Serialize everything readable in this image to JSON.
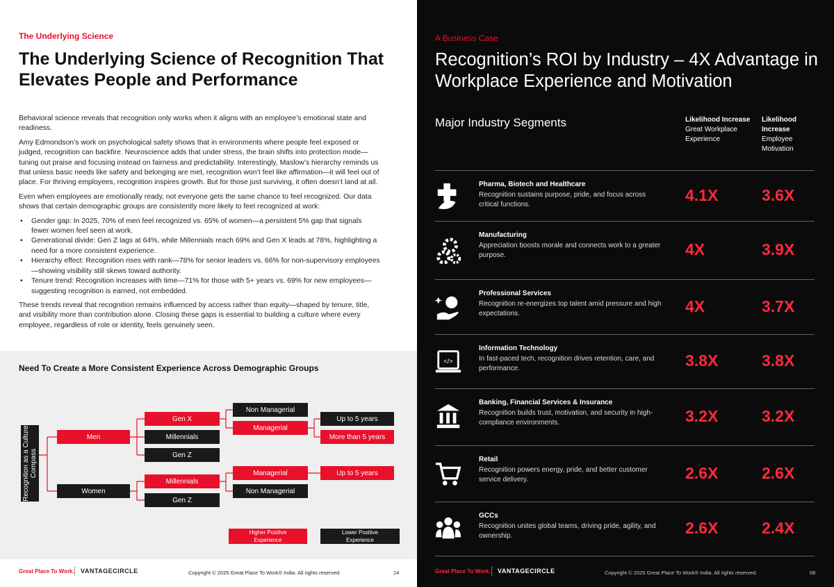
{
  "left": {
    "eyebrow": "The Underlying Science",
    "title": "The Underlying Science of Recognition That Elevates People and Performance",
    "paragraphs": [
      "Behavioral science reveals that recognition only works when it aligns with an employee’s emotional state and readiness.",
      "Amy Edmondson’s work on psychological safety shows that in environments where people feel exposed or judged, recognition can backfire. Neuroscience adds that under stress, the brain shifts into protection mode—tuning out praise and focusing instead on fairness and predictability. Interestingly, Maslow’s hierarchy reminds us that unless basic needs like safety and belonging are met, recognition won’t feel like affirmation—it will feel out of place. For thriving employees, recognition inspires growth. But for those just surviving, it often doesn’t land at all.",
      "Even when employees are emotionally ready, not everyone gets the same chance to feel recognized. Our data shows that certain demographic groups are consistently more likely to feel recognized at work:"
    ],
    "bullets": [
      "Gender gap: In 2025, 70% of men feel recognized vs. 65% of women—a persistent 5% gap that signals fewer women  feel seen at work.",
      "Generational divide: Gen Z lags at 64%, while Millennials reach 69% and Gen X leads at 78%, highlighting a need for a more consistent experience.",
      "Hierarchy effect: Recognition rises with rank—78% for senior leaders vs. 66% for non-supervisory employees—showing visibility still skews toward authority.",
      "Tenure trend: Recognition increases with time—71% for those with 5+ years vs. 69% for new employees—suggesting recognition is earned, not embedded."
    ],
    "closing": "These trends reveal that recognition remains influenced by access rather than equity—shaped by tenure, title, and visibility more than contribution alone. Closing these gaps is essential to building a culture where every employee, regardless of role or identity, feels genuinely seen.",
    "diagram": {
      "title": "Need To Create a More Consistent Experience Across Demographic Groups",
      "root": "Recognition as a Culture Compass",
      "nodes": [
        "Men",
        "Women",
        "Gen X",
        "Millennials",
        "Gen Z",
        "Millennials",
        "Gen Z",
        "Non Managerial",
        "Managerial",
        "Managerial",
        "Non Managerial",
        "Up to 5 years",
        "More than 5 years",
        "Up to 5 years"
      ],
      "legend": [
        "Higher Positive Experience",
        "Lower Positive Experience"
      ]
    },
    "footer": {
      "brand": "Great Place To Work.",
      "partner": "VANTAGECIRCLE",
      "copyright": "Copyright © 2025 Great Place To Work® India. All rights reserved.",
      "page": "14"
    }
  },
  "right": {
    "eyebrow": "A Business Case",
    "title": "Recognition’s ROI by Industry – 4X Advantage in Workplace Experience and Motivation",
    "table": {
      "heading": "Major Industry Segments",
      "columns": [
        {
          "head": "Likelihood Increase",
          "sub": "Great Workplace Experience"
        },
        {
          "head": "Likelihood Increase",
          "sub": "Employee Motivation"
        }
      ],
      "rows": [
        {
          "name": "Pharma, Biotech and Healthcare",
          "desc": "Recognition sustains purpose, pride, and focus across critical functions.",
          "values": [
            "4.1X",
            "3.6X"
          ]
        },
        {
          "name": "Manufacturing",
          "desc": "Appreciation boosts morale and connects work to a greater purpose.",
          "values": [
            "4X",
            "3.9X"
          ]
        },
        {
          "name": "Professional Services",
          "desc": "Recognition re-energizes top talent amid pressure and high expectations.",
          "values": [
            "4X",
            "3.7X"
          ]
        },
        {
          "name": "Information Technology",
          "desc": "In fast-paced tech, recognition drives retention, care, and performance.",
          "values": [
            "3.8X",
            "3.8X"
          ]
        },
        {
          "name": "Banking, Financial Services & Insurance",
          "desc": "Recognition builds trust, motivation, and security in high-compliance environments.",
          "values": [
            "3.2X",
            "3.2X"
          ]
        },
        {
          "name": "Retail",
          "desc": "Recognition powers energy, pride, and better customer service delivery.",
          "values": [
            "2.6X",
            "2.6X"
          ]
        },
        {
          "name": "GCCs",
          "desc": "Recognition unites global teams, driving pride, agility, and ownership.",
          "values": [
            "2.6X",
            "2.4X"
          ]
        }
      ]
    },
    "footer": {
      "brand": "Great Place To Work.",
      "partner": "VANTAGECIRCLE",
      "copyright": "Copyright © 2025 Great Place To Work® India. All rights reserved.",
      "page": "08"
    }
  }
}
